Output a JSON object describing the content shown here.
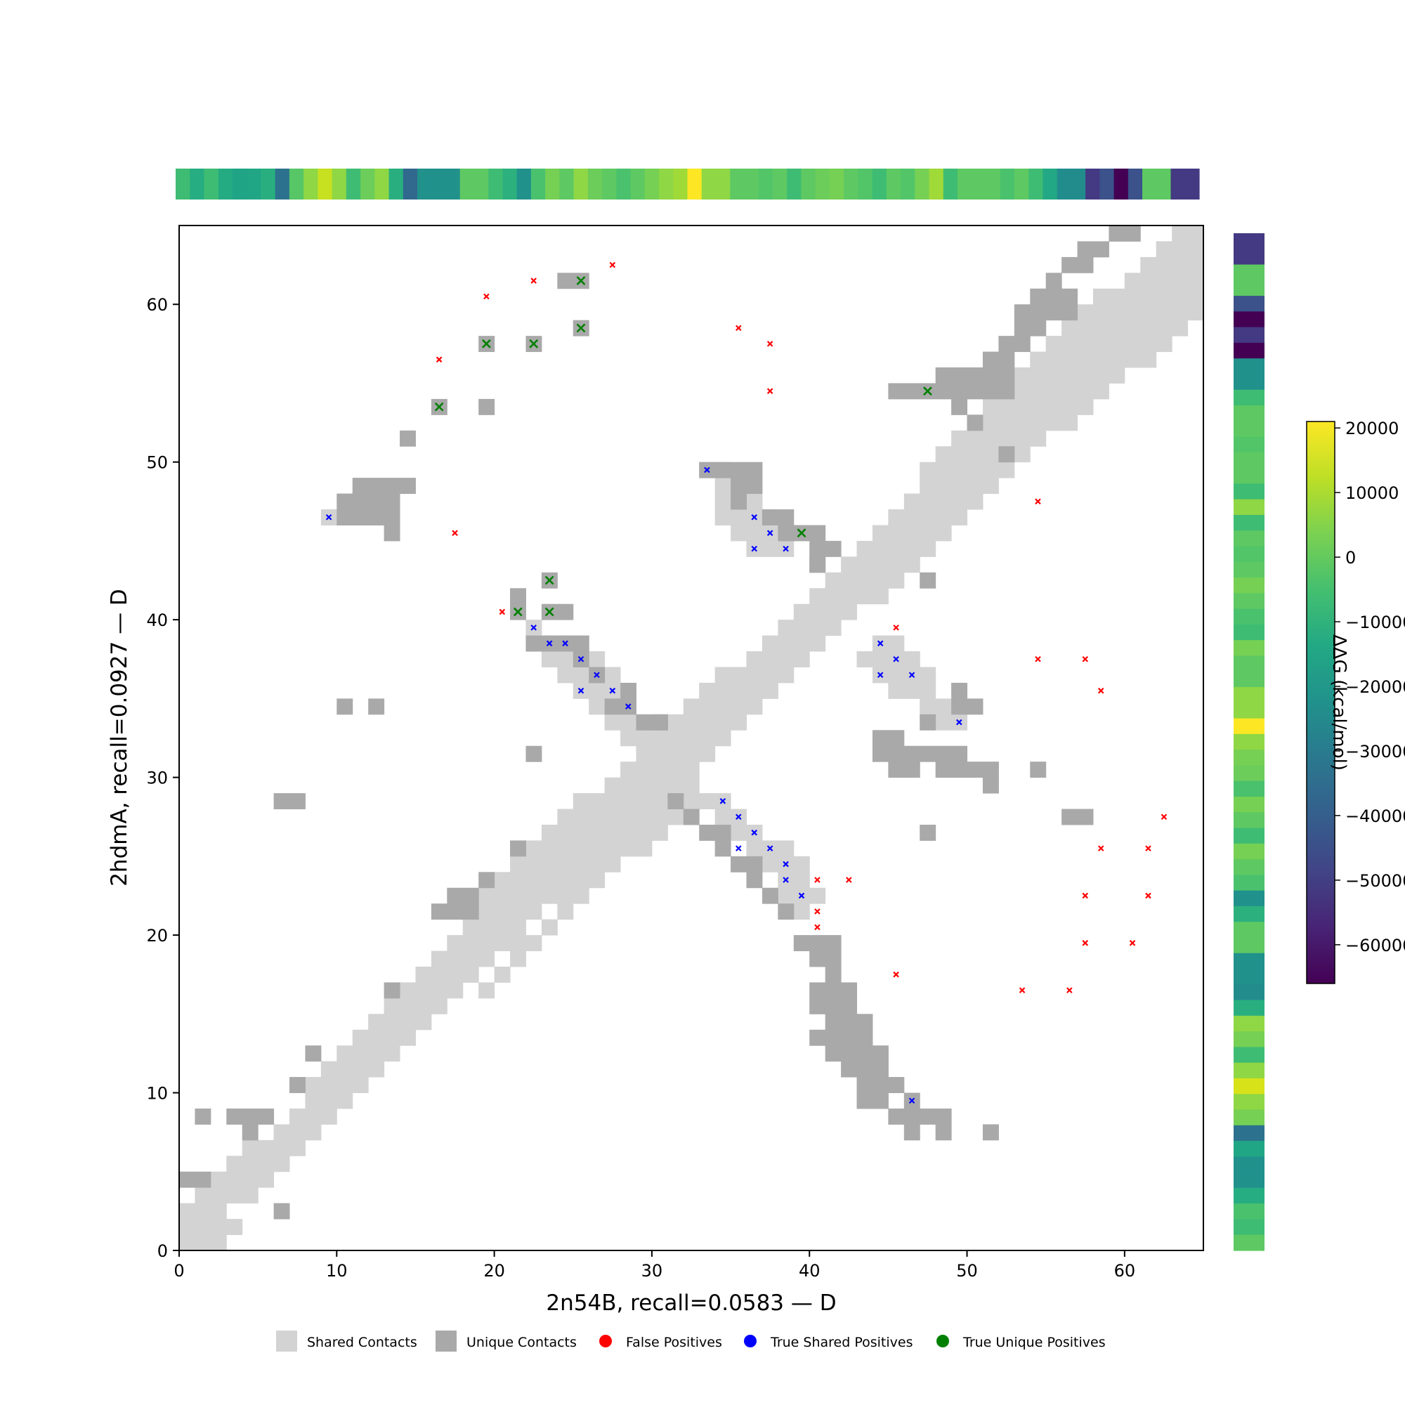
{
  "chart_data": {
    "type": "heatmap",
    "subtype": "contact-map",
    "xlabel": "2n54B, recall=0.0583 — D",
    "ylabel": "2hdmA, recall=0.0927 — D",
    "xlim": [
      0,
      65
    ],
    "ylim": [
      0,
      65
    ],
    "x_ticks": [
      0,
      10,
      20,
      30,
      40,
      50,
      60
    ],
    "y_ticks": [
      0,
      10,
      20,
      30,
      40,
      50,
      60
    ],
    "legend": {
      "position": "bottom",
      "items": [
        {
          "label": "Shared Contacts",
          "marker": "square",
          "color": "#d3d3d3"
        },
        {
          "label": "Unique Contacts",
          "marker": "square",
          "color": "#a9a9a9"
        },
        {
          "label": "False Positives",
          "marker": "circle",
          "color": "#ff0000"
        },
        {
          "label": "True Shared Positives",
          "marker": "circle",
          "color": "#0000ff"
        },
        {
          "label": "True Unique Positives",
          "marker": "circle",
          "color": "#008000"
        }
      ]
    },
    "colors": {
      "shared": "#d3d3d3",
      "unique": "#a9a9a9",
      "false_positive": "#ff0000",
      "true_shared": "#0000ff",
      "true_unique": "#008000"
    },
    "shared_runs": [
      [
        0,
        0,
        3
      ],
      [
        0,
        1,
        4
      ],
      [
        0,
        2,
        3
      ],
      [
        1,
        3,
        5
      ],
      [
        2,
        4,
        6
      ],
      [
        3,
        5,
        7
      ],
      [
        4,
        6,
        8
      ],
      [
        6,
        7,
        9
      ],
      [
        7,
        8,
        10
      ],
      [
        8,
        9,
        11
      ],
      [
        8,
        10,
        12
      ],
      [
        9,
        11,
        13
      ],
      [
        10,
        12,
        14
      ],
      [
        11,
        13,
        15
      ],
      [
        12,
        14,
        16
      ],
      [
        13,
        15,
        17
      ],
      [
        14,
        16,
        18
      ],
      [
        15,
        17,
        19
      ],
      [
        16,
        18,
        20
      ],
      [
        17,
        19,
        22
      ],
      [
        18,
        20,
        22
      ],
      [
        18,
        21,
        23
      ],
      [
        19,
        22,
        25
      ],
      [
        20,
        23,
        26
      ],
      [
        21,
        24,
        27
      ],
      [
        22,
        25,
        28
      ],
      [
        23,
        26,
        29
      ],
      [
        24,
        27,
        30
      ],
      [
        25,
        28,
        31
      ],
      [
        27,
        29,
        32
      ],
      [
        28,
        30,
        33
      ],
      [
        29,
        31,
        34
      ],
      [
        30,
        32,
        35
      ],
      [
        31,
        33,
        36
      ],
      [
        32,
        34,
        37
      ],
      [
        33,
        35,
        38
      ],
      [
        34,
        36,
        39
      ],
      [
        36,
        37,
        40
      ],
      [
        37,
        38,
        41
      ],
      [
        38,
        39,
        42
      ],
      [
        39,
        40,
        43
      ],
      [
        40,
        41,
        45
      ],
      [
        41,
        42,
        46
      ],
      [
        42,
        43,
        47
      ],
      [
        43,
        44,
        48
      ],
      [
        44,
        45,
        49
      ],
      [
        45,
        46,
        50
      ],
      [
        46,
        47,
        51
      ],
      [
        47,
        48,
        52
      ],
      [
        47,
        49,
        53
      ],
      [
        48,
        50,
        54
      ],
      [
        49,
        51,
        55
      ],
      [
        50,
        52,
        57
      ],
      [
        51,
        53,
        58
      ],
      [
        52,
        54,
        59
      ],
      [
        53,
        55,
        60
      ],
      [
        54,
        56,
        62
      ],
      [
        55,
        57,
        63
      ],
      [
        56,
        58,
        64
      ],
      [
        57,
        59,
        65
      ],
      [
        58,
        60,
        65
      ],
      [
        60,
        61,
        65
      ],
      [
        61,
        62,
        65
      ],
      [
        62,
        63,
        65
      ],
      [
        63,
        64,
        65
      ],
      [
        32,
        29,
        33
      ],
      [
        31,
        28,
        35
      ],
      [
        30,
        27,
        32
      ],
      [
        29,
        26,
        31
      ],
      [
        28,
        25,
        30
      ],
      [
        27,
        24,
        28
      ],
      [
        26,
        23,
        27
      ],
      [
        25,
        22,
        26
      ],
      [
        24,
        21,
        25
      ],
      [
        23,
        20,
        24
      ],
      [
        21,
        19,
        23
      ],
      [
        21,
        18,
        22
      ],
      [
        20,
        17,
        21
      ],
      [
        19,
        16,
        20
      ],
      [
        34,
        27,
        36
      ],
      [
        35,
        26,
        37
      ],
      [
        36,
        25,
        39
      ],
      [
        37,
        24,
        40
      ],
      [
        38,
        23,
        40
      ],
      [
        38,
        22,
        41
      ],
      [
        39,
        21,
        40
      ],
      [
        44,
        38,
        46
      ],
      [
        43,
        37,
        47
      ],
      [
        44,
        36,
        48
      ],
      [
        45,
        35,
        48
      ],
      [
        47,
        34,
        50
      ],
      [
        48,
        33,
        50
      ],
      [
        33,
        49,
        35
      ],
      [
        34,
        48,
        36
      ],
      [
        34,
        47,
        37
      ],
      [
        34,
        46,
        38
      ],
      [
        35,
        45,
        39
      ],
      [
        36,
        44,
        39
      ],
      [
        9,
        46,
        10
      ],
      [
        22,
        39,
        23
      ],
      [
        22,
        38,
        26
      ],
      [
        23,
        37,
        27
      ],
      [
        24,
        36,
        28
      ],
      [
        25,
        35,
        28
      ],
      [
        26,
        34,
        29
      ],
      [
        27,
        33,
        30
      ],
      [
        28,
        32,
        31
      ],
      [
        29,
        31,
        30
      ]
    ],
    "unique_runs": [
      [
        0,
        4,
        2
      ],
      [
        1,
        8,
        2
      ],
      [
        3,
        8,
        6
      ],
      [
        4,
        7,
        5
      ],
      [
        6,
        2,
        7
      ],
      [
        7,
        10,
        8
      ],
      [
        8,
        12,
        9
      ],
      [
        13,
        16,
        14
      ],
      [
        16,
        21,
        19
      ],
      [
        17,
        22,
        19
      ],
      [
        19,
        23,
        20
      ],
      [
        21,
        25,
        22
      ],
      [
        22,
        31,
        23
      ],
      [
        30,
        33,
        31
      ],
      [
        31,
        28,
        32
      ],
      [
        32,
        27,
        33
      ],
      [
        33,
        26,
        35
      ],
      [
        34,
        25,
        35
      ],
      [
        35,
        24,
        37
      ],
      [
        36,
        23,
        37
      ],
      [
        37,
        22,
        38
      ],
      [
        38,
        21,
        39
      ],
      [
        40,
        43,
        41
      ],
      [
        51,
        7,
        52
      ],
      [
        52,
        50,
        53
      ],
      [
        50,
        52,
        51
      ],
      [
        49,
        53,
        50
      ],
      [
        45,
        54,
        53
      ],
      [
        48,
        55,
        53
      ],
      [
        51,
        56,
        53
      ],
      [
        52,
        57,
        54
      ],
      [
        53,
        58,
        55
      ],
      [
        53,
        59,
        57
      ],
      [
        54,
        60,
        57
      ],
      [
        55,
        61,
        56
      ],
      [
        56,
        62,
        58
      ],
      [
        57,
        63,
        59
      ],
      [
        59,
        64,
        61
      ],
      [
        39,
        19,
        42
      ],
      [
        40,
        18,
        42
      ],
      [
        41,
        17,
        42
      ],
      [
        40,
        16,
        43
      ],
      [
        40,
        15,
        43
      ],
      [
        41,
        14,
        44
      ],
      [
        40,
        13,
        44
      ],
      [
        41,
        12,
        45
      ],
      [
        42,
        11,
        45
      ],
      [
        43,
        10,
        46
      ],
      [
        43,
        9,
        45
      ],
      [
        46,
        9,
        47
      ],
      [
        45,
        8,
        49
      ],
      [
        46,
        7,
        47
      ],
      [
        48,
        7,
        49
      ],
      [
        40,
        43,
        41
      ],
      [
        47,
        42,
        48
      ],
      [
        49,
        35,
        50
      ],
      [
        49,
        34,
        51
      ],
      [
        47,
        33,
        48
      ],
      [
        44,
        32,
        46
      ],
      [
        44,
        31,
        50
      ],
      [
        45,
        30,
        47
      ],
      [
        48,
        30,
        52
      ],
      [
        51,
        29,
        52
      ],
      [
        54,
        30,
        55
      ],
      [
        47,
        26,
        48
      ],
      [
        56,
        27,
        58
      ],
      [
        33,
        49,
        37
      ],
      [
        35,
        48,
        37
      ],
      [
        35,
        47,
        36
      ],
      [
        38,
        47,
        38
      ],
      [
        37,
        46,
        39
      ],
      [
        38,
        45,
        41
      ],
      [
        40,
        44,
        42
      ],
      [
        23,
        40,
        25
      ],
      [
        21,
        41,
        22
      ],
      [
        21,
        40,
        22
      ],
      [
        22,
        38,
        26
      ],
      [
        25,
        37,
        26
      ],
      [
        26,
        36,
        27
      ],
      [
        28,
        35,
        29
      ],
      [
        27,
        34,
        29
      ],
      [
        29,
        33,
        31
      ],
      [
        11,
        48,
        15
      ],
      [
        10,
        47,
        14
      ],
      [
        10,
        46,
        14
      ],
      [
        13,
        45,
        14
      ],
      [
        6,
        28,
        8
      ],
      [
        10,
        34,
        11
      ],
      [
        12,
        34,
        13
      ],
      [
        14,
        51,
        15
      ],
      [
        16,
        53,
        17
      ],
      [
        19,
        53,
        20
      ],
      [
        19,
        57,
        20
      ],
      [
        22,
        57,
        23
      ],
      [
        24,
        61,
        26
      ],
      [
        25,
        58,
        26
      ],
      [
        23,
        42,
        24
      ]
    ],
    "false_positives": [
      [
        27,
        62
      ],
      [
        22,
        61
      ],
      [
        19,
        60
      ],
      [
        35,
        58
      ],
      [
        37,
        57
      ],
      [
        16,
        56
      ],
      [
        37,
        54
      ],
      [
        54,
        47
      ],
      [
        17,
        45
      ],
      [
        20,
        40
      ],
      [
        45,
        39
      ],
      [
        54,
        37
      ],
      [
        57,
        37
      ],
      [
        58,
        35
      ],
      [
        62,
        27
      ],
      [
        58,
        25
      ],
      [
        61,
        25
      ],
      [
        40,
        23
      ],
      [
        42,
        23
      ],
      [
        57,
        22
      ],
      [
        61,
        22
      ],
      [
        40,
        21
      ],
      [
        40,
        20
      ],
      [
        57,
        19
      ],
      [
        60,
        19
      ],
      [
        45,
        17
      ],
      [
        53,
        16
      ],
      [
        56,
        16
      ]
    ],
    "true_shared_positives": [
      [
        33,
        49
      ],
      [
        9,
        46
      ],
      [
        36,
        46
      ],
      [
        37,
        45
      ],
      [
        36,
        44
      ],
      [
        38,
        44
      ],
      [
        22,
        39
      ],
      [
        23,
        38
      ],
      [
        24,
        38
      ],
      [
        44,
        38
      ],
      [
        25,
        37
      ],
      [
        45,
        37
      ],
      [
        26,
        36
      ],
      [
        44,
        36
      ],
      [
        46,
        36
      ],
      [
        25,
        35
      ],
      [
        27,
        35
      ],
      [
        28,
        34
      ],
      [
        49,
        33
      ],
      [
        34,
        28
      ],
      [
        35,
        27
      ],
      [
        36,
        26
      ],
      [
        35,
        25
      ],
      [
        37,
        25
      ],
      [
        38,
        24
      ],
      [
        38,
        23
      ],
      [
        39,
        22
      ],
      [
        46,
        9
      ]
    ],
    "true_unique_positives": [
      [
        25,
        61
      ],
      [
        25,
        58
      ],
      [
        19,
        57
      ],
      [
        22,
        57
      ],
      [
        47,
        54
      ],
      [
        16,
        53
      ],
      [
        39,
        45
      ],
      [
        23,
        42
      ],
      [
        21,
        40
      ],
      [
        23,
        40
      ]
    ],
    "top_track": [
      "#3fbc73",
      "#26ad81",
      "#3fbc73",
      "#25ab82",
      "#20a486",
      "#21a685",
      "#29af7f",
      "#2c728e",
      "#56c667",
      "#8fd744",
      "#c7e020",
      "#8fd744",
      "#3fbc73",
      "#6ccd5a",
      "#8fd744",
      "#29af7f",
      "#31688e",
      "#21918c",
      "#21918c",
      "#21918c",
      "#5ec962",
      "#5ec962",
      "#3fbc73",
      "#2cb17e",
      "#21918c",
      "#4ac16d",
      "#75d054",
      "#5ec962",
      "#8fd744",
      "#6ccd5a",
      "#5ec962",
      "#4ac16d",
      "#5ec962",
      "#75d054",
      "#8fd744",
      "#a0da39",
      "#fde725",
      "#8fd744",
      "#8fd744",
      "#5ec962",
      "#5ec962",
      "#52c569",
      "#5ec962",
      "#3fbc73",
      "#5ec962",
      "#6ccd5a",
      "#75d054",
      "#5ec962",
      "#52c569",
      "#3fbc73",
      "#5ec962",
      "#52c569",
      "#75d054",
      "#a0da39",
      "#3fbc73",
      "#5ec962",
      "#5ec962",
      "#5ec962",
      "#4ac16d",
      "#5ec962",
      "#3fbc73",
      "#22a884",
      "#228c8d",
      "#228c8d",
      "#443983",
      "#3b528b",
      "#440154",
      "#3b528b",
      "#5ec962",
      "#5ec962",
      "#443983",
      "#443983"
    ],
    "side_track": [
      "#443983",
      "#443983",
      "#5ec962",
      "#5ec962",
      "#3b528b",
      "#440154",
      "#443983",
      "#440154",
      "#21918c",
      "#21918c",
      "#3fbc73",
      "#5ec962",
      "#5ec962",
      "#52c569",
      "#5ec962",
      "#5ec962",
      "#3fbc73",
      "#8fd744",
      "#3fbc73",
      "#5ec962",
      "#52c569",
      "#5ec962",
      "#75d054",
      "#5ec962",
      "#4ac16d",
      "#3fbc73",
      "#75d054",
      "#5ec962",
      "#5ec962",
      "#8fd744",
      "#8fd744",
      "#fde725",
      "#8fd744",
      "#75d054",
      "#6ccd5a",
      "#4ac16d",
      "#75d054",
      "#5ec962",
      "#3fbc73",
      "#75d054",
      "#5ec962",
      "#4ac16d",
      "#21918c",
      "#2cb17e",
      "#5ec962",
      "#5ec962",
      "#21918c",
      "#21918c",
      "#228c8d",
      "#29af7f",
      "#8fd744",
      "#75d054",
      "#3fbc73",
      "#8fd744",
      "#d8e219",
      "#8fd744",
      "#75d054",
      "#2c728e",
      "#21a685",
      "#21918c",
      "#21918c",
      "#26ad81",
      "#4ac16d",
      "#3fbc73",
      "#5ec962"
    ],
    "colorbar": {
      "label": "ΔΔG (kcal/mol)",
      "vmin": -66000,
      "vmax": 21000,
      "ticks": [
        20000,
        10000,
        0,
        -10000,
        -20000,
        -30000,
        -40000,
        -50000,
        -60000
      ],
      "tick_labels": [
        "20000",
        "10000",
        "0",
        "−10000",
        "−20000",
        "−30000",
        "−40000",
        "−50000",
        "−60000"
      ]
    }
  }
}
